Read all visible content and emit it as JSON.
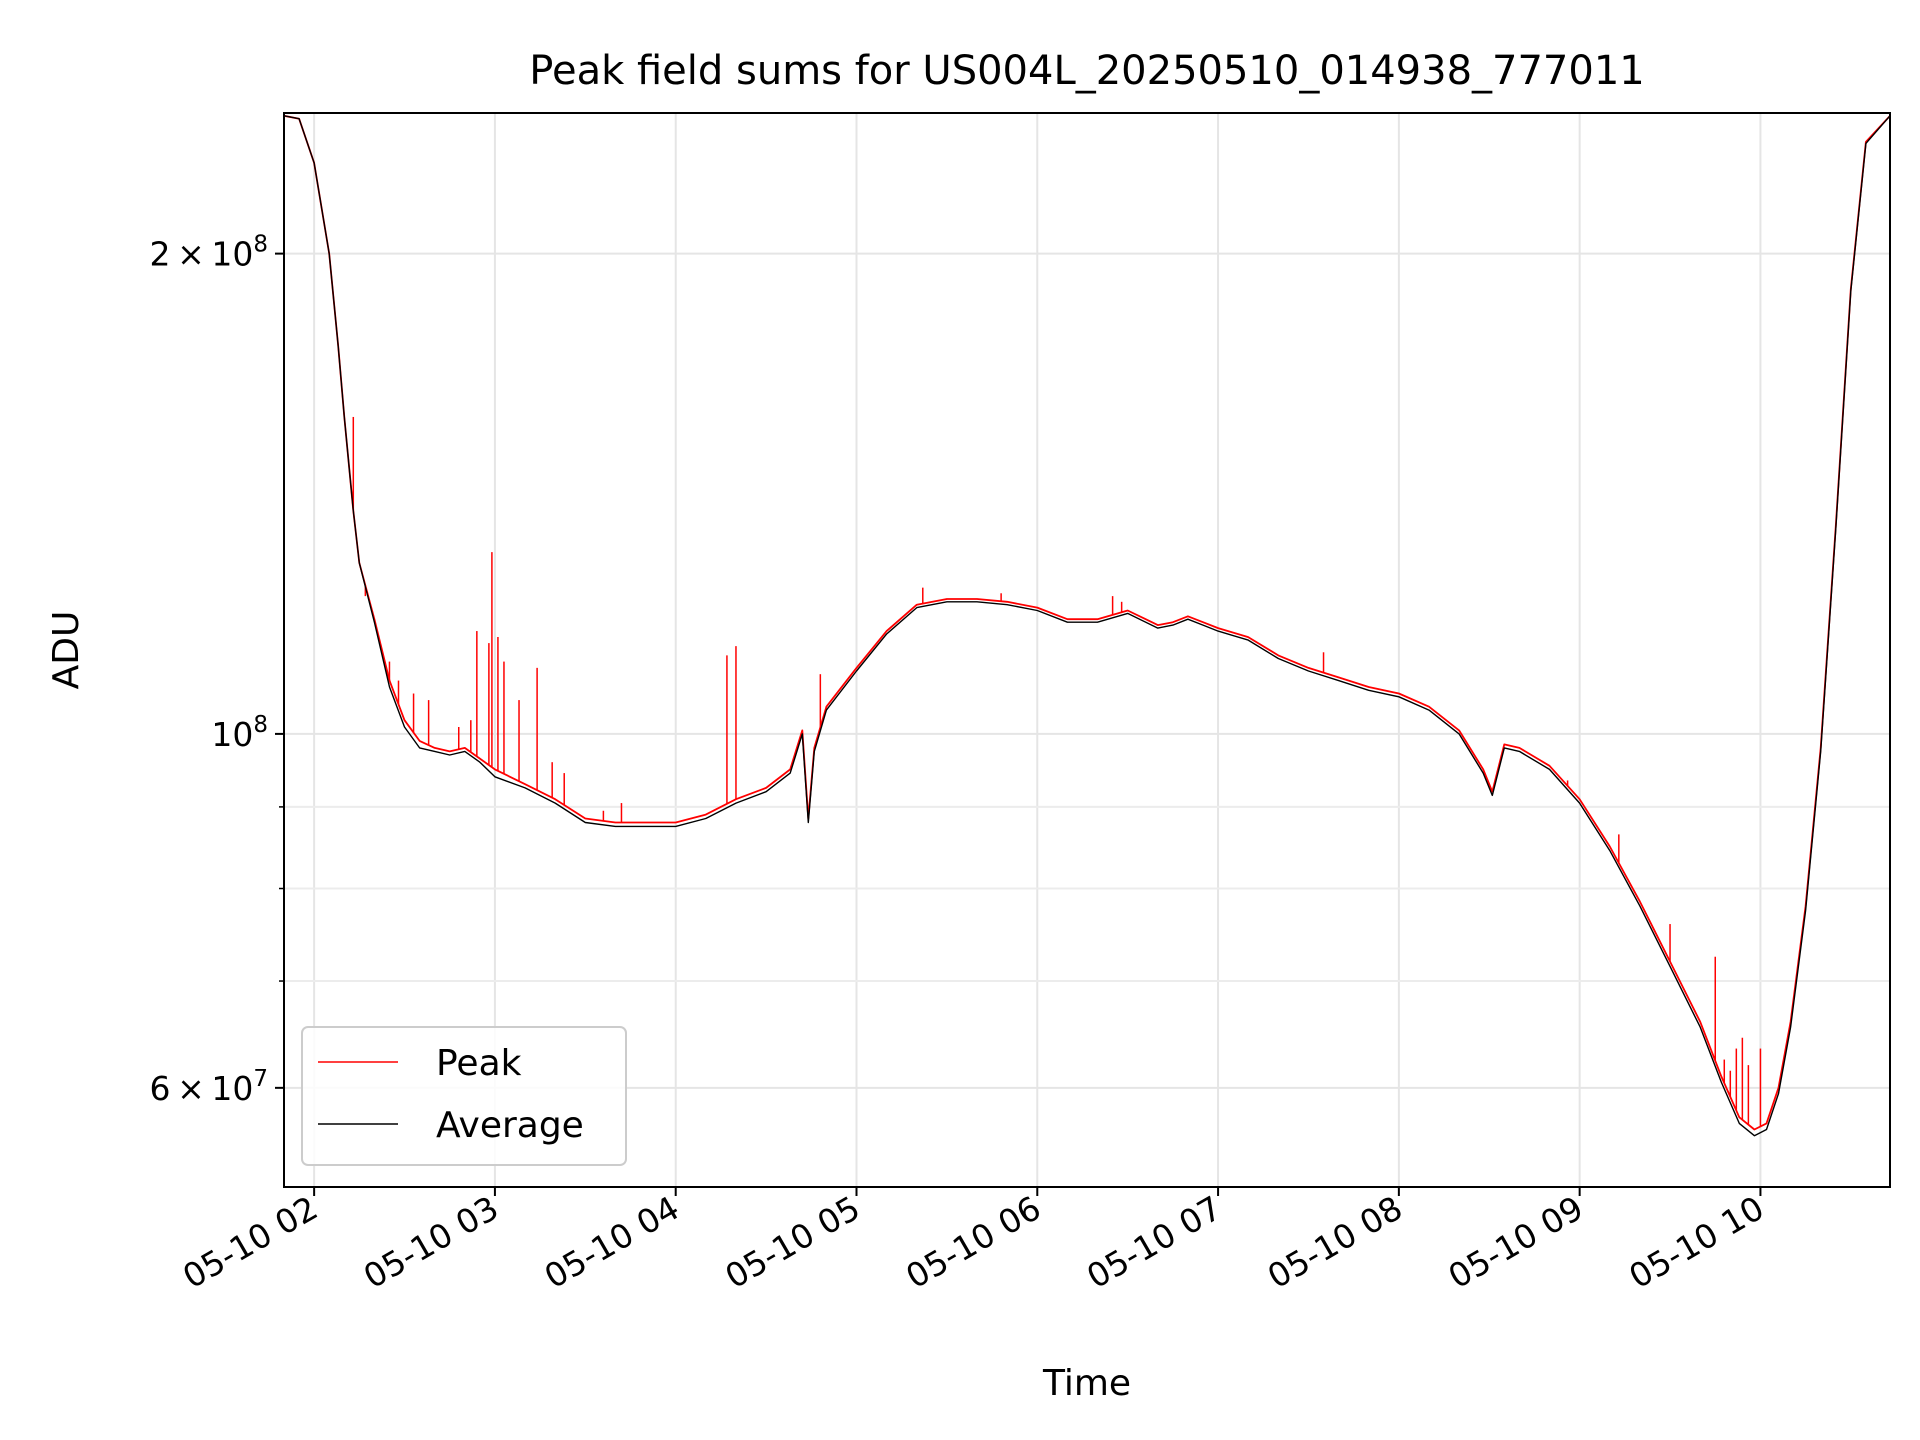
{
  "chart_data": {
    "type": "line",
    "title": "Peak field sums for US004L_20250510_014938_777011",
    "xlabel": "Time",
    "ylabel": "ADU",
    "y_scale": "log",
    "x_unit": "time (2025-05-10 HH:MM)",
    "xlim": [
      "05-10 01:50",
      "05-10 10:43"
    ],
    "ylim": [
      52000000,
      245000000
    ],
    "x_ticks": [
      {
        "t": "05-10 02:00",
        "label": "05-10 02"
      },
      {
        "t": "05-10 03:00",
        "label": "05-10 03"
      },
      {
        "t": "05-10 04:00",
        "label": "05-10 04"
      },
      {
        "t": "05-10 05:00",
        "label": "05-10 05"
      },
      {
        "t": "05-10 06:00",
        "label": "05-10 06"
      },
      {
        "t": "05-10 07:00",
        "label": "05-10 07"
      },
      {
        "t": "05-10 08:00",
        "label": "05-10 08"
      },
      {
        "t": "05-10 09:00",
        "label": "05-10 09"
      },
      {
        "t": "05-10 10:00",
        "label": "05-10 10"
      }
    ],
    "y_major_ticks": [
      {
        "value": 60000000,
        "base": "6 × 10",
        "exp": "7"
      },
      {
        "value": 100000000,
        "base": "10",
        "exp": "8"
      },
      {
        "value": 200000000,
        "base": "2 × 10",
        "exp": "8"
      }
    ],
    "y_minor_ticks": [
      70000000,
      80000000,
      90000000
    ],
    "grid": true,
    "legend_position": "bottom-left",
    "series": [
      {
        "name": "Peak",
        "color": "#ff0000",
        "x": [
          "05-10 01:50",
          "05-10 01:55",
          "05-10 02:00",
          "05-10 02:05",
          "05-10 02:08",
          "05-10 02:10",
          "05-10 02:13",
          "05-10 02:15",
          "05-10 02:20",
          "05-10 02:25",
          "05-10 02:30",
          "05-10 02:35",
          "05-10 02:40",
          "05-10 02:45",
          "05-10 02:50",
          "05-10 02:55",
          "05-10 03:00",
          "05-10 03:10",
          "05-10 03:20",
          "05-10 03:30",
          "05-10 03:40",
          "05-10 03:50",
          "05-10 04:00",
          "05-10 04:10",
          "05-10 04:20",
          "05-10 04:30",
          "05-10 04:38",
          "05-10 04:42",
          "05-10 04:44",
          "05-10 04:46",
          "05-10 04:50",
          "05-10 05:00",
          "05-10 05:10",
          "05-10 05:20",
          "05-10 05:30",
          "05-10 05:40",
          "05-10 05:50",
          "05-10 06:00",
          "05-10 06:10",
          "05-10 06:20",
          "05-10 06:30",
          "05-10 06:40",
          "05-10 06:45",
          "05-10 06:50",
          "05-10 06:55",
          "05-10 07:00",
          "05-10 07:10",
          "05-10 07:20",
          "05-10 07:30",
          "05-10 07:40",
          "05-10 07:50",
          "05-10 08:00",
          "05-10 08:10",
          "05-10 08:20",
          "05-10 08:28",
          "05-10 08:31",
          "05-10 08:35",
          "05-10 08:40",
          "05-10 08:50",
          "05-10 09:00",
          "05-10 09:10",
          "05-10 09:20",
          "05-10 09:30",
          "05-10 09:40",
          "05-10 09:47",
          "05-10 09:53",
          "05-10 09:58",
          "05-10 10:02",
          "05-10 10:06",
          "05-10 10:10",
          "05-10 10:15",
          "05-10 10:20",
          "05-10 10:25",
          "05-10 10:30",
          "05-10 10:35",
          "05-10 10:43"
        ],
        "y": [
          244000000,
          243000000,
          228000000,
          200000000,
          175000000,
          158000000,
          138000000,
          128000000,
          118000000,
          108000000,
          102000000,
          99000000,
          98000000,
          97500000,
          98000000,
          96500000,
          95000000,
          93000000,
          91000000,
          88500000,
          88000000,
          88000000,
          88000000,
          89000000,
          91000000,
          92500000,
          95000000,
          100500000,
          88500000,
          98000000,
          104000000,
          110000000,
          116000000,
          120500000,
          121500000,
          121500000,
          121000000,
          120000000,
          118000000,
          118000000,
          119500000,
          117000000,
          117500000,
          118500000,
          117500000,
          116500000,
          115000000,
          112000000,
          110000000,
          108500000,
          107000000,
          106000000,
          104000000,
          100500000,
          95000000,
          92000000,
          98500000,
          98000000,
          95500000,
          91000000,
          85000000,
          78500000,
          72000000,
          66000000,
          61000000,
          57500000,
          56500000,
          57000000,
          60000000,
          66000000,
          78000000,
          98000000,
          135000000,
          190000000,
          235000000,
          244000000
        ],
        "spikes": [
          {
            "x": "05-10 02:13",
            "y": 158000000
          },
          {
            "x": "05-10 02:17",
            "y": 122000000
          },
          {
            "x": "05-10 02:25",
            "y": 111000000
          },
          {
            "x": "05-10 02:28",
            "y": 108000000
          },
          {
            "x": "05-10 02:33",
            "y": 106000000
          },
          {
            "x": "05-10 02:38",
            "y": 105000000
          },
          {
            "x": "05-10 02:48",
            "y": 101000000
          },
          {
            "x": "05-10 02:52",
            "y": 102000000
          },
          {
            "x": "05-10 02:54",
            "y": 116000000
          },
          {
            "x": "05-10 02:58",
            "y": 114000000
          },
          {
            "x": "05-10 02:59",
            "y": 130000000
          },
          {
            "x": "05-10 03:01",
            "y": 115000000
          },
          {
            "x": "05-10 03:03",
            "y": 111000000
          },
          {
            "x": "05-10 03:08",
            "y": 105000000
          },
          {
            "x": "05-10 03:14",
            "y": 110000000
          },
          {
            "x": "05-10 03:19",
            "y": 96000000
          },
          {
            "x": "05-10 03:23",
            "y": 94500000
          },
          {
            "x": "05-10 03:36",
            "y": 89500000
          },
          {
            "x": "05-10 03:42",
            "y": 90500000
          },
          {
            "x": "05-10 04:17",
            "y": 112000000
          },
          {
            "x": "05-10 04:20",
            "y": 113500000
          },
          {
            "x": "05-10 04:48",
            "y": 109000000
          },
          {
            "x": "05-10 05:22",
            "y": 123500000
          },
          {
            "x": "05-10 05:48",
            "y": 122500000
          },
          {
            "x": "05-10 06:25",
            "y": 122000000
          },
          {
            "x": "05-10 06:28",
            "y": 121000000
          },
          {
            "x": "05-10 07:35",
            "y": 112500000
          },
          {
            "x": "05-10 08:56",
            "y": 93500000
          },
          {
            "x": "05-10 09:13",
            "y": 86500000
          },
          {
            "x": "05-10 09:30",
            "y": 76000000
          },
          {
            "x": "05-10 09:45",
            "y": 72500000
          },
          {
            "x": "05-10 09:48",
            "y": 62500000
          },
          {
            "x": "05-10 09:50",
            "y": 61500000
          },
          {
            "x": "05-10 09:52",
            "y": 63500000
          },
          {
            "x": "05-10 09:54",
            "y": 64500000
          },
          {
            "x": "05-10 09:56",
            "y": 62000000
          },
          {
            "x": "05-10 10:00",
            "y": 63500000
          }
        ]
      },
      {
        "name": "Average",
        "color": "#000000",
        "x": [
          "05-10 01:50",
          "05-10 01:55",
          "05-10 02:00",
          "05-10 02:05",
          "05-10 02:08",
          "05-10 02:10",
          "05-10 02:13",
          "05-10 02:15",
          "05-10 02:20",
          "05-10 02:25",
          "05-10 02:30",
          "05-10 02:35",
          "05-10 02:40",
          "05-10 02:45",
          "05-10 02:50",
          "05-10 02:55",
          "05-10 03:00",
          "05-10 03:10",
          "05-10 03:20",
          "05-10 03:30",
          "05-10 03:40",
          "05-10 03:50",
          "05-10 04:00",
          "05-10 04:10",
          "05-10 04:20",
          "05-10 04:30",
          "05-10 04:38",
          "05-10 04:42",
          "05-10 04:44",
          "05-10 04:46",
          "05-10 04:50",
          "05-10 05:00",
          "05-10 05:10",
          "05-10 05:20",
          "05-10 05:30",
          "05-10 05:40",
          "05-10 05:50",
          "05-10 06:00",
          "05-10 06:10",
          "05-10 06:20",
          "05-10 06:30",
          "05-10 06:40",
          "05-10 06:45",
          "05-10 06:50",
          "05-10 06:55",
          "05-10 07:00",
          "05-10 07:10",
          "05-10 07:20",
          "05-10 07:30",
          "05-10 07:40",
          "05-10 07:50",
          "05-10 08:00",
          "05-10 08:10",
          "05-10 08:20",
          "05-10 08:28",
          "05-10 08:31",
          "05-10 08:35",
          "05-10 08:40",
          "05-10 08:50",
          "05-10 09:00",
          "05-10 09:10",
          "05-10 09:20",
          "05-10 09:30",
          "05-10 09:40",
          "05-10 09:47",
          "05-10 09:53",
          "05-10 09:58",
          "05-10 10:02",
          "05-10 10:06",
          "05-10 10:10",
          "05-10 10:15",
          "05-10 10:20",
          "05-10 10:25",
          "05-10 10:30",
          "05-10 10:35",
          "05-10 10:43"
        ],
        "y": [
          244000000,
          243000000,
          228000000,
          200000000,
          175000000,
          158000000,
          138000000,
          128000000,
          117500000,
          107000000,
          101000000,
          98000000,
          97500000,
          97000000,
          97500000,
          96000000,
          94000000,
          92500000,
          90500000,
          88000000,
          87500000,
          87500000,
          87500000,
          88500000,
          90500000,
          92000000,
          94500000,
          100000000,
          88000000,
          97500000,
          103500000,
          109500000,
          115500000,
          120000000,
          121000000,
          121000000,
          120500000,
          119500000,
          117500000,
          117500000,
          119000000,
          116500000,
          117000000,
          118000000,
          117000000,
          116000000,
          114500000,
          111500000,
          109500000,
          108000000,
          106500000,
          105500000,
          103500000,
          100000000,
          94500000,
          91500000,
          98000000,
          97500000,
          95000000,
          90500000,
          84500000,
          78000000,
          71500000,
          65500000,
          60500000,
          57000000,
          56000000,
          56500000,
          59500000,
          65500000,
          77500000,
          97500000,
          134500000,
          189500000,
          234500000,
          244000000
        ]
      }
    ]
  }
}
